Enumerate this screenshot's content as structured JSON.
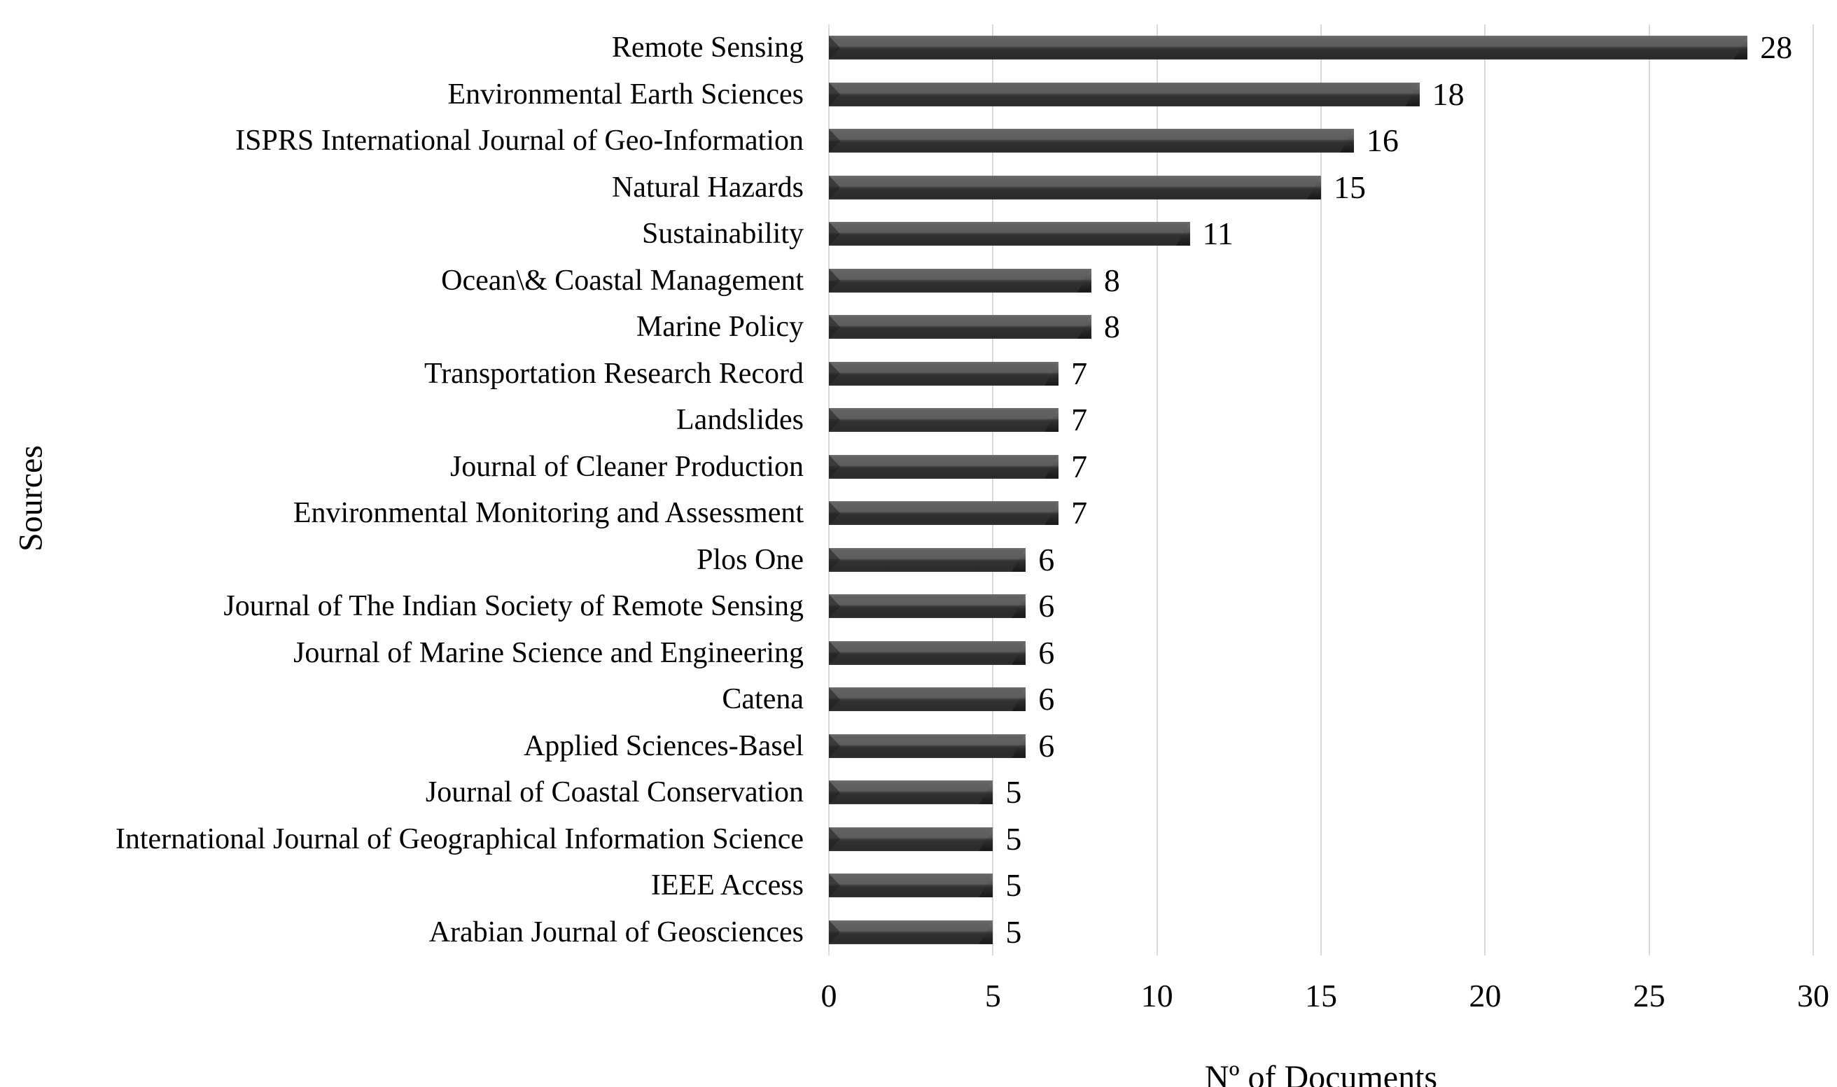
{
  "chart_data": {
    "type": "bar",
    "orientation": "horizontal",
    "title": "",
    "xlabel": "Nº of Documents",
    "xlabel_parts": {
      "n": "N",
      "ordinal": "º",
      "rest": " of Documents"
    },
    "ylabel": "Sources",
    "xlim": [
      0,
      30
    ],
    "x_ticks": [
      0,
      5,
      10,
      15,
      20,
      25,
      30
    ],
    "grid": true,
    "legend": "none",
    "categories": [
      "Remote Sensing",
      "Environmental Earth Sciences",
      "ISPRS International Journal of Geo-Information",
      "Natural Hazards",
      "Sustainability",
      "Ocean\\& Coastal Management",
      "Marine Policy",
      "Transportation Research Record",
      "Landslides",
      "Journal of Cleaner Production",
      "Environmental Monitoring and Assessment",
      "Plos One",
      "Journal of The Indian Society of Remote Sensing",
      "Journal of Marine Science and Engineering",
      "Catena",
      "Applied Sciences-Basel",
      "Journal of Coastal Conservation",
      "International Journal of Geographical Information Science",
      "IEEE Access",
      "Arabian Journal of Geosciences"
    ],
    "values": [
      28,
      18,
      16,
      15,
      11,
      8,
      8,
      7,
      7,
      7,
      7,
      6,
      6,
      6,
      6,
      6,
      5,
      5,
      5,
      5
    ],
    "colors": {
      "bar": "#3f3f3f",
      "bar_top": "#5e5e5e",
      "bar_bottom": "#2b2b2b",
      "gridline": "#d9d9d9",
      "text": "#000000",
      "background": "#ffffff"
    }
  }
}
